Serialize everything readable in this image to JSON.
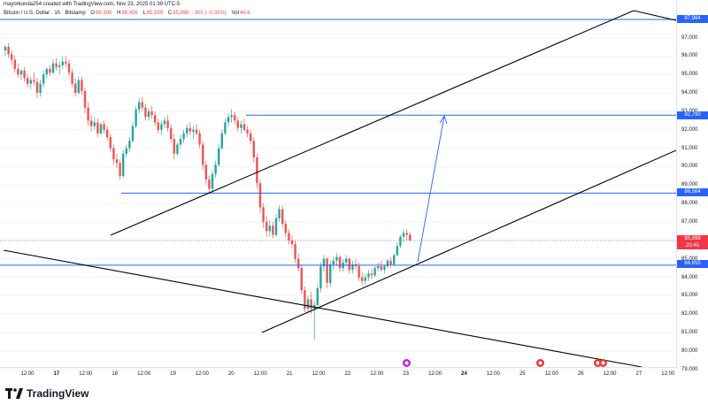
{
  "header": {
    "credit": "mayorkunda254 created with TradingView.com, Nov 23, 2025 01:39 UTC-5",
    "symbol": "Bitcoin / U.S. Dollar · 1h · Bitstamp",
    "ohlc": {
      "o_label": "O",
      "o_value": "86,306",
      "h_label": "H",
      "h_value": "86,456",
      "l_label": "L",
      "l_value": "85,959",
      "c_label": "C",
      "c_value": "85,998",
      "change": "−305 (−0.35%)",
      "vol_label": "Vol",
      "vol_value": "46.6"
    }
  },
  "price_axis": [
    "97,000",
    "96,000",
    "95,000",
    "94,000",
    "93,000",
    "92,000",
    "91,000",
    "90,000",
    "89,000",
    "88,000",
    "87,000",
    "86,000",
    "85,000",
    "84,000",
    "83,000",
    "82,000",
    "81,000",
    "80,000",
    "79,000"
  ],
  "price_tags": {
    "top": "97,984",
    "target": "92,790",
    "mid": "88,564",
    "current_price": "85,998",
    "countdown": "20:45",
    "support": "84,655"
  },
  "time_axis": [
    {
      "label": "12:00"
    },
    {
      "label": "17",
      "bold": true
    },
    {
      "label": "12:00"
    },
    {
      "label": "18"
    },
    {
      "label": "12:00"
    },
    {
      "label": "19"
    },
    {
      "label": "12:00"
    },
    {
      "label": "20"
    },
    {
      "label": "12:00"
    },
    {
      "label": "21"
    },
    {
      "label": "12:00"
    },
    {
      "label": "22"
    },
    {
      "label": "12:00"
    },
    {
      "label": "23"
    },
    {
      "label": "12:00"
    },
    {
      "label": "24",
      "bold": true
    },
    {
      "label": "12:00"
    },
    {
      "label": "25"
    },
    {
      "label": "12:00"
    },
    {
      "label": "26"
    },
    {
      "label": "12:00"
    },
    {
      "label": "27"
    },
    {
      "label": "12:00"
    }
  ],
  "branding": {
    "name": "TradingView"
  },
  "colors": {
    "up": "#26a69a",
    "down": "#ef5350",
    "line": "#2962ff",
    "trend": "#000000"
  },
  "chart_data": {
    "type": "candlestick",
    "ylim": [
      79000,
      98500
    ],
    "hlines": [
      97984,
      92790,
      88564,
      84655
    ],
    "last": 85998,
    "candles": [
      [
        96300,
        96600,
        96000,
        96500
      ],
      [
        96500,
        96700,
        95900,
        96100
      ],
      [
        96100,
        96300,
        95500,
        95800
      ],
      [
        95800,
        96000,
        95100,
        95300
      ],
      [
        95300,
        95600,
        94800,
        95000
      ],
      [
        95000,
        95300,
        94700,
        95200
      ],
      [
        95200,
        95400,
        94600,
        94800
      ],
      [
        94800,
        95000,
        94300,
        94500
      ],
      [
        94500,
        94900,
        94200,
        94700
      ],
      [
        94700,
        95100,
        94400,
        94600
      ],
      [
        94600,
        94800,
        93700,
        94000
      ],
      [
        94000,
        94700,
        93800,
        94500
      ],
      [
        94500,
        95200,
        94300,
        95000
      ],
      [
        95000,
        95400,
        94800,
        95300
      ],
      [
        95300,
        95500,
        94900,
        95100
      ],
      [
        95100,
        95800,
        95000,
        95600
      ],
      [
        95600,
        95900,
        95200,
        95400
      ],
      [
        95400,
        95700,
        95000,
        95500
      ],
      [
        95500,
        96000,
        95300,
        95700
      ],
      [
        95700,
        96000,
        95400,
        95600
      ],
      [
        95600,
        95800,
        94900,
        95100
      ],
      [
        95100,
        95300,
        94300,
        94500
      ],
      [
        94500,
        94800,
        93800,
        94000
      ],
      [
        94000,
        94900,
        93900,
        94700
      ],
      [
        94700,
        94900,
        93900,
        94100
      ],
      [
        94100,
        94300,
        92900,
        93200
      ],
      [
        93200,
        93500,
        92200,
        92500
      ],
      [
        92500,
        92800,
        91900,
        92200
      ],
      [
        92200,
        92700,
        92000,
        92400
      ],
      [
        92400,
        92600,
        91600,
        91800
      ],
      [
        91800,
        92400,
        91700,
        92300
      ],
      [
        92300,
        92500,
        91800,
        92000
      ],
      [
        92000,
        92200,
        91400,
        91600
      ],
      [
        91600,
        91800,
        90800,
        91000
      ],
      [
        91000,
        91200,
        90100,
        90400
      ],
      [
        90400,
        90700,
        89900,
        90200
      ],
      [
        90200,
        90400,
        89300,
        89500
      ],
      [
        89500,
        90900,
        89400,
        90700
      ],
      [
        90700,
        91200,
        90500,
        91000
      ],
      [
        91000,
        91600,
        90800,
        91400
      ],
      [
        91400,
        92400,
        91300,
        92200
      ],
      [
        92200,
        93300,
        92100,
        93100
      ],
      [
        93100,
        93700,
        92900,
        93500
      ],
      [
        93500,
        93800,
        93000,
        93200
      ],
      [
        93200,
        93400,
        92500,
        92700
      ],
      [
        92700,
        93200,
        92500,
        93000
      ],
      [
        93000,
        93300,
        92600,
        92800
      ],
      [
        92800,
        93000,
        92200,
        92400
      ],
      [
        92400,
        92600,
        91800,
        92000
      ],
      [
        92000,
        92500,
        91700,
        92300
      ],
      [
        92300,
        92700,
        92100,
        92500
      ],
      [
        92500,
        92800,
        91900,
        92100
      ],
      [
        92100,
        92300,
        91300,
        91500
      ],
      [
        91500,
        91800,
        90400,
        90700
      ],
      [
        90700,
        91300,
        90600,
        91200
      ],
      [
        91200,
        91700,
        91000,
        91500
      ],
      [
        91500,
        92000,
        91300,
        91800
      ],
      [
        91800,
        92300,
        91600,
        92100
      ],
      [
        92100,
        92400,
        91700,
        91900
      ],
      [
        91900,
        92200,
        91500,
        92000
      ],
      [
        92000,
        92300,
        91700,
        91800
      ],
      [
        91800,
        92000,
        91000,
        91200
      ],
      [
        91200,
        91400,
        89800,
        90100
      ],
      [
        90100,
        90300,
        89000,
        89300
      ],
      [
        89300,
        89500,
        88500,
        88800
      ],
      [
        88800,
        89800,
        88600,
        89600
      ],
      [
        89600,
        90300,
        89400,
        90100
      ],
      [
        90100,
        91200,
        90000,
        91000
      ],
      [
        91000,
        92000,
        90900,
        91800
      ],
      [
        91800,
        92600,
        91700,
        92400
      ],
      [
        92400,
        92900,
        92200,
        92700
      ],
      [
        92700,
        93100,
        92400,
        92800
      ],
      [
        92800,
        93000,
        92300,
        92500
      ],
      [
        92500,
        92700,
        91900,
        92100
      ],
      [
        92100,
        92500,
        91800,
        92300
      ],
      [
        92300,
        92600,
        91900,
        92000
      ],
      [
        92000,
        92200,
        91600,
        91800
      ],
      [
        91800,
        92000,
        91200,
        91400
      ],
      [
        91400,
        91600,
        90200,
        90500
      ],
      [
        90500,
        90700,
        88800,
        89100
      ],
      [
        89100,
        89300,
        87500,
        87800
      ],
      [
        87800,
        88000,
        86700,
        87000
      ],
      [
        87000,
        87300,
        86200,
        86500
      ],
      [
        86500,
        87100,
        86200,
        86800
      ],
      [
        86800,
        87000,
        86100,
        86300
      ],
      [
        86300,
        87400,
        86200,
        87200
      ],
      [
        87200,
        87900,
        87000,
        87700
      ],
      [
        87700,
        87900,
        86700,
        86900
      ],
      [
        86900,
        87100,
        86200,
        86400
      ],
      [
        86400,
        86600,
        85800,
        86000
      ],
      [
        86000,
        86300,
        85600,
        85800
      ],
      [
        85800,
        86000,
        84800,
        85000
      ],
      [
        85000,
        85300,
        84300,
        84500
      ],
      [
        84500,
        84700,
        83100,
        83300
      ],
      [
        83300,
        83500,
        82100,
        82300
      ],
      [
        82300,
        83000,
        82100,
        82800
      ],
      [
        82800,
        83200,
        82000,
        82300
      ],
      [
        82300,
        82700,
        80600,
        82500
      ],
      [
        82500,
        83600,
        82300,
        83400
      ],
      [
        83400,
        84800,
        83200,
        84600
      ],
      [
        84600,
        85200,
        84300,
        85000
      ],
      [
        85000,
        85100,
        83400,
        83700
      ],
      [
        83700,
        84900,
        83500,
        84700
      ],
      [
        84700,
        85100,
        84400,
        84900
      ],
      [
        84900,
        85300,
        84600,
        85100
      ],
      [
        85100,
        85200,
        84300,
        84500
      ],
      [
        84500,
        85000,
        84300,
        84800
      ],
      [
        84800,
        85200,
        84600,
        85000
      ],
      [
        85000,
        85100,
        84200,
        84400
      ],
      [
        84400,
        84900,
        84200,
        84700
      ],
      [
        84700,
        85000,
        84400,
        84600
      ],
      [
        84600,
        84800,
        83800,
        84000
      ],
      [
        84000,
        84300,
        83600,
        83800
      ],
      [
        83800,
        84200,
        83600,
        84000
      ],
      [
        84000,
        84400,
        83800,
        84200
      ],
      [
        84200,
        84500,
        83900,
        84100
      ],
      [
        84100,
        84600,
        84000,
        84500
      ],
      [
        84500,
        84800,
        84300,
        84600
      ],
      [
        84600,
        84900,
        84300,
        84400
      ],
      [
        84400,
        84700,
        84200,
        84600
      ],
      [
        84600,
        85000,
        84500,
        84900
      ],
      [
        84900,
        85100,
        84500,
        84700
      ],
      [
        84700,
        85300,
        84600,
        85200
      ],
      [
        85200,
        85900,
        85100,
        85700
      ],
      [
        85700,
        86300,
        85600,
        86200
      ],
      [
        86200,
        86600,
        85900,
        86400
      ],
      [
        86400,
        86600,
        86000,
        86300
      ],
      [
        86306,
        86456,
        85959,
        85998
      ]
    ]
  }
}
